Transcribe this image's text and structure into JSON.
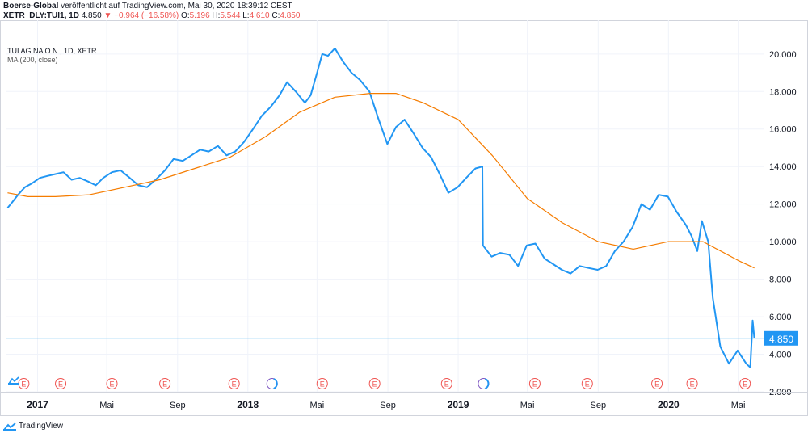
{
  "header": {
    "author": "Boerse-Global",
    "published": "veröffentlicht auf TradingView.com, Mai 30, 2020 18:39:12 CEST",
    "symbol": "XETR_DLY:TUI1, 1D",
    "last": "4.850",
    "arrow": "▼",
    "change": "−0.964 (−16.58%)",
    "o_label": "O:",
    "o_value": "5.196",
    "h_label": "H:",
    "h_value": "5.544",
    "l_label": "L:",
    "l_value": "4.610",
    "c_label": "C:",
    "c_value": "4.850"
  },
  "legend": {
    "title": "TUI AG NA O.N., 1D, XETR",
    "ma": "MA (200, close)"
  },
  "footer": {
    "brand": "TradingView"
  },
  "colors": {
    "price": "#2196f3",
    "ma": "#f57c00",
    "last_line": "#73c2f5",
    "event": "#ef5350"
  },
  "chart_data": {
    "type": "line",
    "x_ticks": [
      {
        "label": "2017",
        "bold": true,
        "date": "2017-01-01"
      },
      {
        "label": "Mai",
        "bold": false,
        "date": "2017-05-01"
      },
      {
        "label": "Sep",
        "bold": false,
        "date": "2017-09-01"
      },
      {
        "label": "2018",
        "bold": true,
        "date": "2018-01-01"
      },
      {
        "label": "Mai",
        "bold": false,
        "date": "2018-05-01"
      },
      {
        "label": "Sep",
        "bold": false,
        "date": "2018-09-01"
      },
      {
        "label": "2019",
        "bold": true,
        "date": "2019-01-01"
      },
      {
        "label": "Mai",
        "bold": false,
        "date": "2019-05-01"
      },
      {
        "label": "Sep",
        "bold": false,
        "date": "2019-09-01"
      },
      {
        "label": "2020",
        "bold": true,
        "date": "2020-01-01"
      },
      {
        "label": "Mai",
        "bold": false,
        "date": "2020-05-01"
      }
    ],
    "y_ticks": [
      "2.000",
      "4.000",
      "6.000",
      "8.000",
      "10.000",
      "12.000",
      "14.000",
      "16.000",
      "18.000",
      "20.000"
    ],
    "ylim": [
      2,
      21.8
    ],
    "xlim": [
      "2016-11-08",
      "2020-06-14"
    ],
    "last_value": 4.85,
    "last_label": "4.850",
    "series": [
      {
        "name": "TUI AG NA O.N., 1D, XETR",
        "x": [
          "2016-11-10",
          "2016-11-18",
          "2016-11-28",
          "2016-12-10",
          "2016-12-22",
          "2017-01-05",
          "2017-01-18",
          "2017-02-01",
          "2017-02-15",
          "2017-03-01",
          "2017-03-15",
          "2017-03-30",
          "2017-04-12",
          "2017-04-25",
          "2017-05-10",
          "2017-05-25",
          "2017-06-10",
          "2017-06-25",
          "2017-07-10",
          "2017-07-25",
          "2017-08-10",
          "2017-08-25",
          "2017-09-10",
          "2017-09-25",
          "2017-10-10",
          "2017-10-25",
          "2017-11-10",
          "2017-11-25",
          "2017-12-10",
          "2017-12-25",
          "2018-01-10",
          "2018-01-25",
          "2018-02-10",
          "2018-02-25",
          "2018-03-10",
          "2018-03-25",
          "2018-04-10",
          "2018-04-20",
          "2018-05-01",
          "2018-05-10",
          "2018-05-20",
          "2018-06-01",
          "2018-06-15",
          "2018-06-30",
          "2018-07-15",
          "2018-07-31",
          "2018-08-15",
          "2018-08-31",
          "2018-09-15",
          "2018-09-30",
          "2018-10-15",
          "2018-10-31",
          "2018-11-15",
          "2018-11-30",
          "2018-12-15",
          "2018-12-31",
          "2019-01-15",
          "2019-01-31",
          "2019-02-12",
          "2019-02-13",
          "2019-02-28",
          "2019-03-15",
          "2019-03-31",
          "2019-04-15",
          "2019-04-30",
          "2019-05-15",
          "2019-05-31",
          "2019-06-15",
          "2019-06-30",
          "2019-07-15",
          "2019-07-31",
          "2019-08-15",
          "2019-08-31",
          "2019-09-15",
          "2019-09-30",
          "2019-10-15",
          "2019-10-31",
          "2019-11-15",
          "2019-11-30",
          "2019-12-15",
          "2019-12-31",
          "2020-01-15",
          "2020-01-31",
          "2020-02-10",
          "2020-02-20",
          "2020-02-28",
          "2020-03-10",
          "2020-03-18",
          "2020-03-31",
          "2020-04-15",
          "2020-04-30",
          "2020-05-15",
          "2020-05-22",
          "2020-05-26",
          "2020-05-29"
        ],
        "y": [
          11.8,
          12.1,
          12.5,
          12.9,
          13.1,
          13.4,
          13.5,
          13.6,
          13.7,
          13.3,
          13.4,
          13.2,
          13.0,
          13.4,
          13.7,
          13.8,
          13.4,
          13.0,
          12.9,
          13.3,
          13.8,
          14.4,
          14.3,
          14.6,
          14.9,
          14.8,
          15.1,
          14.6,
          14.8,
          15.3,
          16.0,
          16.7,
          17.2,
          17.8,
          18.5,
          18.0,
          17.4,
          17.8,
          19.0,
          20.0,
          19.9,
          20.3,
          19.6,
          19.0,
          18.6,
          18.0,
          16.6,
          15.2,
          16.1,
          16.5,
          15.8,
          15.0,
          14.5,
          13.6,
          12.6,
          12.9,
          13.4,
          13.9,
          14.0,
          9.8,
          9.2,
          9.4,
          9.3,
          8.7,
          9.8,
          9.9,
          9.1,
          8.8,
          8.5,
          8.3,
          8.7,
          8.6,
          8.5,
          8.7,
          9.5,
          10.0,
          10.8,
          12.0,
          11.7,
          12.5,
          12.4,
          11.6,
          10.9,
          10.3,
          9.5,
          11.1,
          10.0,
          7.0,
          4.4,
          3.5,
          4.2,
          3.5,
          3.3,
          5.8,
          4.85
        ]
      },
      {
        "name": "MA (200, close)",
        "x": [
          "2016-11-10",
          "2016-12-15",
          "2017-02-01",
          "2017-04-01",
          "2017-06-01",
          "2017-08-01",
          "2017-10-01",
          "2017-12-01",
          "2018-02-01",
          "2018-04-01",
          "2018-06-01",
          "2018-08-01",
          "2018-09-15",
          "2018-11-01",
          "2019-01-01",
          "2019-03-01",
          "2019-05-01",
          "2019-07-01",
          "2019-09-01",
          "2019-11-01",
          "2020-01-01",
          "2020-03-01",
          "2020-05-01",
          "2020-05-29"
        ],
        "y": [
          12.6,
          12.4,
          12.4,
          12.5,
          12.9,
          13.3,
          13.9,
          14.5,
          15.6,
          16.9,
          17.7,
          17.9,
          17.9,
          17.4,
          16.5,
          14.6,
          12.3,
          11.0,
          10.0,
          9.6,
          10.0,
          10.0,
          9.0,
          8.6
        ]
      }
    ],
    "events": [
      {
        "date": "2016-12-08",
        "label": "E",
        "type": "earnings"
      },
      {
        "date": "2017-02-10",
        "label": "E",
        "type": "earnings"
      },
      {
        "date": "2017-05-10",
        "label": "E",
        "type": "earnings"
      },
      {
        "date": "2017-08-10",
        "label": "E",
        "type": "earnings"
      },
      {
        "date": "2017-12-08",
        "label": "E",
        "type": "earnings"
      },
      {
        "date": "2018-02-12",
        "label": "",
        "type": "dividend"
      },
      {
        "date": "2018-05-10",
        "label": "E",
        "type": "earnings"
      },
      {
        "date": "2018-08-09",
        "label": "E",
        "type": "earnings"
      },
      {
        "date": "2018-12-12",
        "label": "E",
        "type": "earnings"
      },
      {
        "date": "2019-02-14",
        "label": "",
        "type": "dividend"
      },
      {
        "date": "2019-05-14",
        "label": "E",
        "type": "earnings"
      },
      {
        "date": "2019-08-13",
        "label": "E",
        "type": "earnings"
      },
      {
        "date": "2019-12-12",
        "label": "E",
        "type": "earnings"
      },
      {
        "date": "2020-02-11",
        "label": "E",
        "type": "earnings"
      },
      {
        "date": "2020-05-13",
        "label": "E",
        "type": "earnings"
      }
    ]
  }
}
